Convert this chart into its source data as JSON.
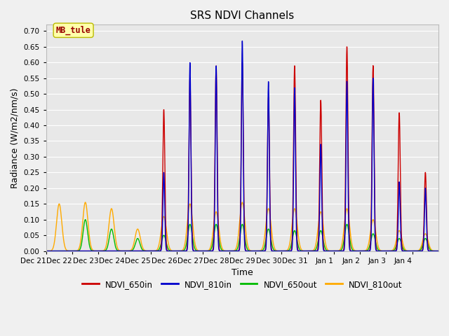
{
  "title": "SRS NDVI Channels",
  "xlabel": "Time",
  "ylabel": "Radiance (W/m2/nm/s)",
  "annotation": "MB_tule",
  "ylim": [
    0.0,
    0.72
  ],
  "yticks": [
    0.0,
    0.05,
    0.1,
    0.15,
    0.2,
    0.25,
    0.3,
    0.35,
    0.4,
    0.45,
    0.5,
    0.55,
    0.6,
    0.65,
    0.7
  ],
  "background_color": "#e8e8e8",
  "plot_bg_color": "#e8e8e8",
  "grid_color": "#ffffff",
  "fig_bg_color": "#f0f0f0",
  "series": {
    "NDVI_650in": {
      "color": "#cc0000",
      "linewidth": 1.0
    },
    "NDVI_810in": {
      "color": "#0000cc",
      "linewidth": 1.0
    },
    "NDVI_650out": {
      "color": "#00bb00",
      "linewidth": 1.0
    },
    "NDVI_810out": {
      "color": "#ffaa00",
      "linewidth": 1.0
    }
  },
  "x_tick_labels": [
    "Dec 21",
    "Dec 22",
    "Dec 23",
    "Dec 24",
    "Dec 25",
    "Dec 26",
    "Dec 27",
    "Dec 28",
    "Dec 29",
    "Dec 30",
    "Dec 31",
    "Jan 1",
    "Jan 2",
    "Jan 3",
    "Jan 4"
  ],
  "num_days": 15,
  "peaks_650in": [
    0.0,
    0.0,
    0.0,
    0.0,
    0.45,
    0.55,
    0.59,
    0.6,
    0.49,
    0.59,
    0.48,
    0.65,
    0.59,
    0.44,
    0.25
  ],
  "peaks_810in": [
    0.0,
    0.0,
    0.0,
    0.0,
    0.25,
    0.6,
    0.59,
    0.67,
    0.54,
    0.52,
    0.34,
    0.54,
    0.55,
    0.22,
    0.2
  ],
  "peaks_650out": [
    0.0,
    0.1,
    0.07,
    0.04,
    0.05,
    0.085,
    0.085,
    0.085,
    0.07,
    0.065,
    0.065,
    0.085,
    0.055,
    0.04,
    0.04
  ],
  "peaks_810out": [
    0.15,
    0.155,
    0.135,
    0.07,
    0.11,
    0.15,
    0.125,
    0.155,
    0.135,
    0.135,
    0.125,
    0.135,
    0.1,
    0.065,
    0.055
  ],
  "spike_sigma_narrow": 0.04,
  "spike_sigma_wide": 0.1,
  "pts_per_day": 200
}
